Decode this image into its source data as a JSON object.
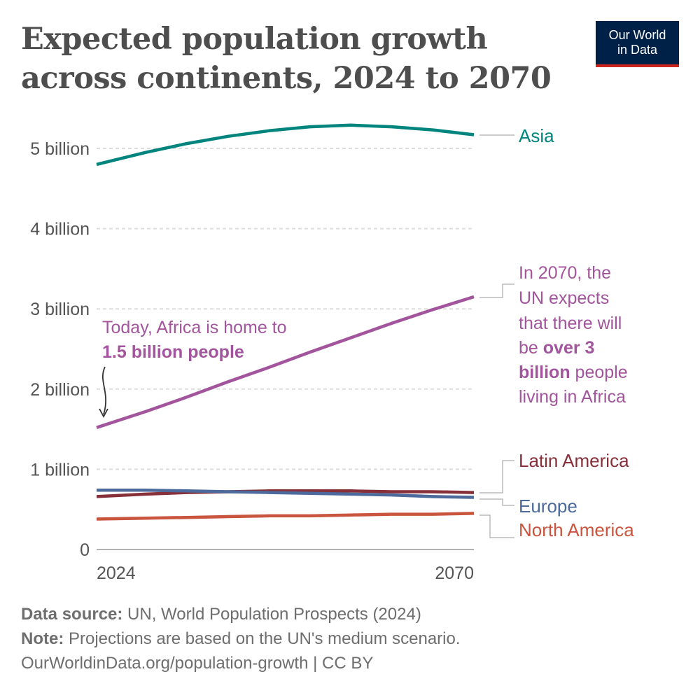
{
  "title": "Expected population growth across continents, 2024 to 2070",
  "logo": {
    "line1": "Our World",
    "line2": "in Data",
    "bg": "#002147",
    "accent": "#ce261e"
  },
  "chart_data": {
    "type": "line",
    "x": [
      2024,
      2030,
      2035,
      2040,
      2045,
      2050,
      2055,
      2060,
      2065,
      2070
    ],
    "xlim": [
      2024,
      2070
    ],
    "ylim": [
      0,
      5.3
    ],
    "yunit": "billion",
    "xticks": [
      {
        "value": 2024,
        "label": "2024"
      },
      {
        "value": 2070,
        "label": "2070"
      }
    ],
    "yticks": [
      {
        "value": 0,
        "label": "0"
      },
      {
        "value": 1,
        "label": "1 billion"
      },
      {
        "value": 2,
        "label": "2 billion"
      },
      {
        "value": 3,
        "label": "3 billion"
      },
      {
        "value": 4,
        "label": "4 billion"
      },
      {
        "value": 5,
        "label": "5 billion"
      }
    ],
    "grid": "horizontal dashed",
    "legend": "right, line-end labels",
    "series": [
      {
        "name": "Asia",
        "color": "#00847e",
        "values": [
          4.8,
          4.95,
          5.06,
          5.15,
          5.22,
          5.27,
          5.29,
          5.27,
          5.23,
          5.17
        ]
      },
      {
        "name": "Africa",
        "color": "#a2559c",
        "values": [
          1.52,
          1.72,
          1.9,
          2.09,
          2.27,
          2.46,
          2.64,
          2.82,
          2.99,
          3.15
        ]
      },
      {
        "name": "Latin America",
        "color": "#883039",
        "values": [
          0.66,
          0.69,
          0.71,
          0.72,
          0.73,
          0.73,
          0.73,
          0.72,
          0.72,
          0.71
        ]
      },
      {
        "name": "Europe",
        "color": "#4c6a9c",
        "values": [
          0.74,
          0.74,
          0.73,
          0.72,
          0.71,
          0.7,
          0.69,
          0.68,
          0.66,
          0.65
        ]
      },
      {
        "name": "North America",
        "color": "#c9553e",
        "values": [
          0.38,
          0.39,
          0.4,
          0.41,
          0.42,
          0.42,
          0.43,
          0.44,
          0.44,
          0.45
        ]
      }
    ],
    "annotations": {
      "today": {
        "line1": "Today, Africa is home to",
        "line2": "1.5 billion people"
      },
      "future": [
        "In 2070, the",
        "UN expects",
        "that there will",
        "be ",
        "over 3",
        "billion",
        " people",
        "living in Africa"
      ]
    }
  },
  "footer": {
    "source_label": "Data source:",
    "source": " UN, World Population Prospects (2024)",
    "note_label": "Note:",
    "note": " Projections are based on the UN's medium scenario.",
    "link": "OurWorldinData.org/population-growth | CC BY"
  }
}
